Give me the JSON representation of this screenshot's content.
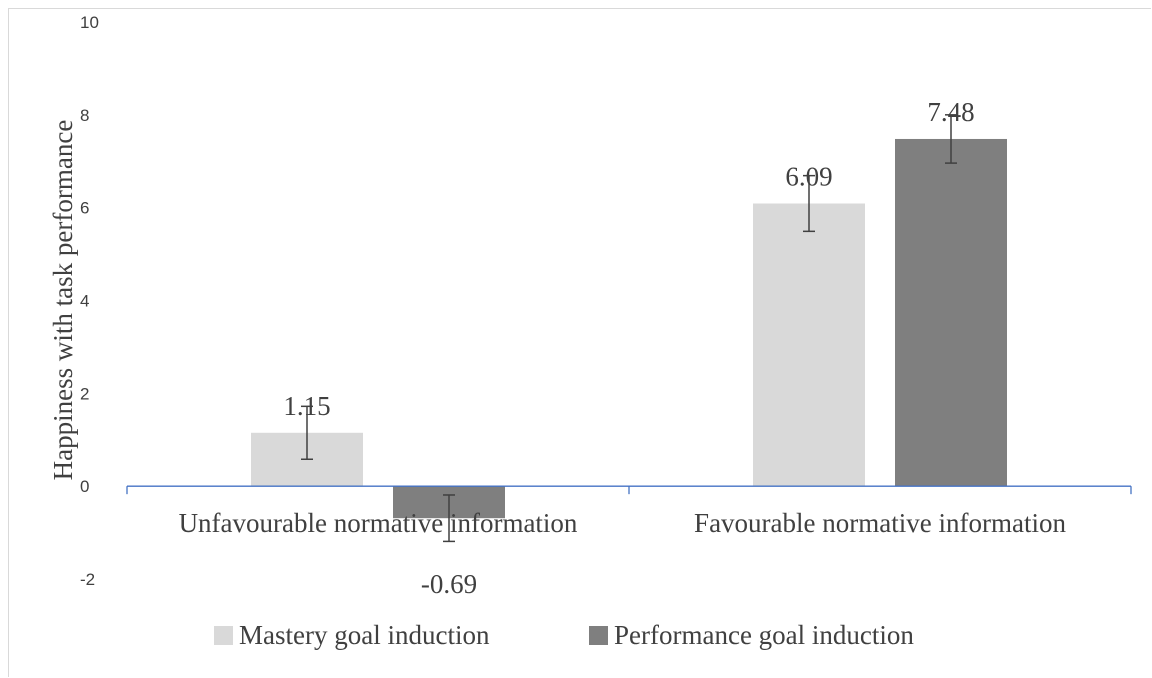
{
  "chart_data": {
    "type": "bar",
    "categories": [
      "Unfavourable normative information",
      "Favourable normative information"
    ],
    "series": [
      {
        "name": "Mastery goal induction",
        "values": [
          1.15,
          6.09
        ],
        "errors": [
          0.57,
          0.6
        ],
        "color": "#d9d9d9"
      },
      {
        "name": "Performance goal induction",
        "values": [
          -0.69,
          7.48
        ],
        "errors": [
          0.5,
          0.52
        ],
        "color": "#7f7f7f"
      }
    ],
    "data_labels": [
      "1.15",
      "-0.69",
      "6.09",
      "7.48"
    ],
    "ylabel": "Happiness with task performance",
    "xlabel": "",
    "ylim": [
      -2,
      10
    ],
    "yticks": [
      "-2",
      "0",
      "2",
      "4",
      "6",
      "8",
      "10"
    ],
    "grid": false,
    "legend_position": "bottom",
    "axis_color": "#4472c4"
  }
}
